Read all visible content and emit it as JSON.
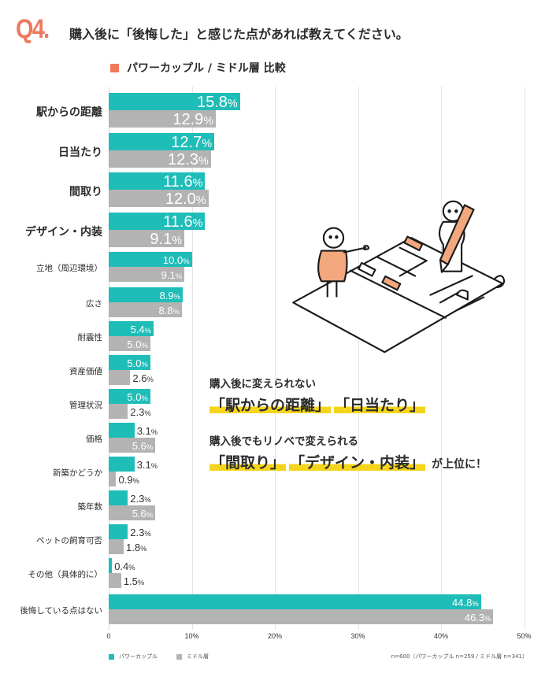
{
  "header": {
    "question_number": "Q4.",
    "question": "購入後に「後悔した」と感じた点があれば教えてください。",
    "subtitle": "パワーカップル / ミドル層 比較",
    "subtitle_marker_color": "#f07a5a"
  },
  "callout": {
    "line1": "購入後に変えられない",
    "highlights1": [
      "「駅からの距離」",
      "「日当たり」"
    ],
    "line2": "購入後でもリノベで変えられる",
    "highlights2": [
      "「間取り」",
      "「デザイン・内装」"
    ],
    "tail": "が上位に！",
    "highlight_color": "#f5d51c"
  },
  "illustration": {
    "description": "Two people with a floor plan; one pointing, one holding a large pencil",
    "accent_color": "#f2a77c"
  },
  "legend": {
    "items": [
      {
        "label": "パワーカップル",
        "color": "#1fbdb8"
      },
      {
        "label": "ミドル層",
        "color": "#b3b3b3"
      }
    ],
    "note": "n=600（パワーカップル n=259 / ミドル層 n=341）"
  },
  "axis": {
    "ticks": [
      "0",
      "10%",
      "20%",
      "30%",
      "40%",
      "50%"
    ]
  },
  "chart_data": {
    "type": "bar",
    "orientation": "horizontal",
    "title": "購入後に「後悔した」と感じた点があれば教えてください。",
    "subtitle": "パワーカップル / ミドル層 比較",
    "xlabel": "",
    "ylabel": "",
    "xlim": [
      0,
      50
    ],
    "grid": true,
    "legend_position": "bottom-left",
    "categories": [
      "駅からの距離",
      "日当たり",
      "間取り",
      "デザイン・内装",
      "立地（周辺環境）",
      "広さ",
      "耐震性",
      "資産価値",
      "管理状況",
      "価格",
      "新築かどうか",
      "築年数",
      "ペットの飼育可否",
      "その他（具体的に）",
      "後悔している点はない"
    ],
    "series": [
      {
        "name": "パワーカップル",
        "color": "#1fbdb8",
        "values": [
          15.8,
          12.7,
          11.6,
          11.6,
          10.0,
          8.9,
          5.4,
          5.0,
          5.0,
          3.1,
          3.1,
          2.3,
          2.3,
          0.4,
          44.8
        ]
      },
      {
        "name": "ミドル層",
        "color": "#b3b3b3",
        "values": [
          12.9,
          12.3,
          12.0,
          9.1,
          9.1,
          8.8,
          5.0,
          2.6,
          2.3,
          5.6,
          0.9,
          5.6,
          1.8,
          1.5,
          46.3
        ]
      }
    ],
    "value_labels": {
      "teal": [
        "15.8%",
        "12.7%",
        "11.6%",
        "11.6%",
        "10.0%",
        "8.9%",
        "5.4%",
        "5.0%",
        "5.0%",
        "3.1%",
        "3.1%",
        "2.3%",
        "2.3%",
        "0.4%",
        "44.8%"
      ],
      "gray": [
        "12.9%",
        "12.3%",
        "12.0%",
        "9.1%",
        "9.1%",
        "8.8%",
        "5.0%",
        "2.6%",
        "2.3%",
        "5.6%",
        "0.9%",
        "5.6%",
        "1.8%",
        "1.5%",
        "46.3%"
      ]
    },
    "sample": "n=600（パワーカップル n=259 / ミドル層 n=341）"
  }
}
